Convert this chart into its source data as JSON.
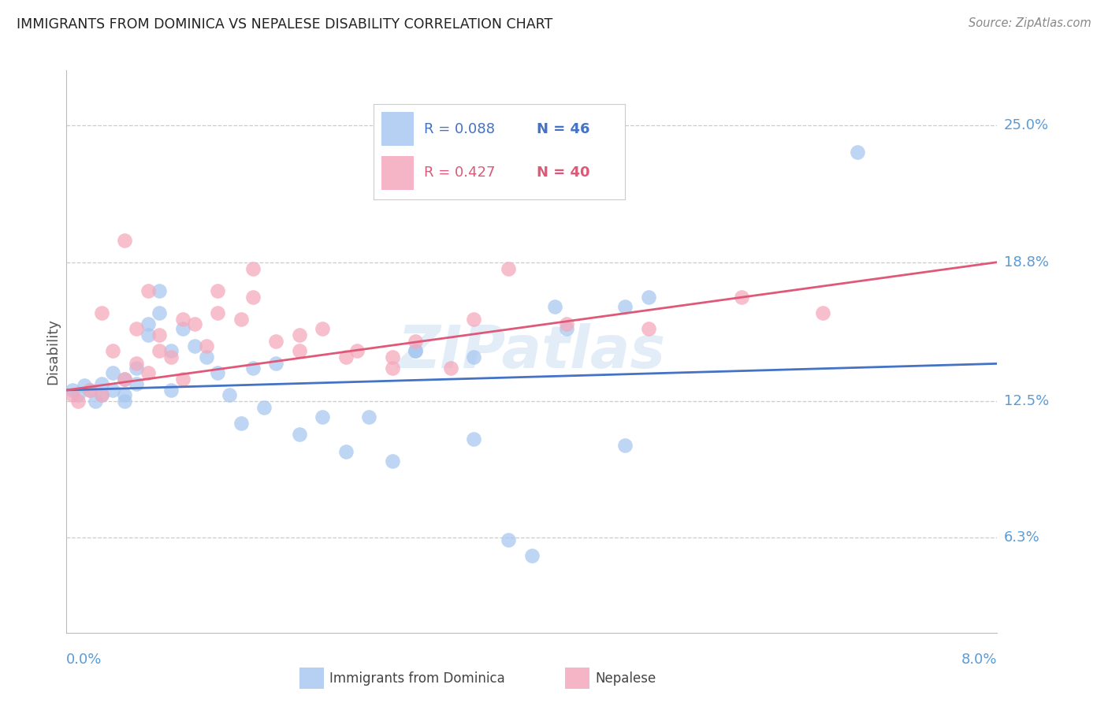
{
  "title": "IMMIGRANTS FROM DOMINICA VS NEPALESE DISABILITY CORRELATION CHART",
  "source": "Source: ZipAtlas.com",
  "ylabel": "Disability",
  "ytick_labels": [
    "6.3%",
    "12.5%",
    "18.8%",
    "25.0%"
  ],
  "ytick_values": [
    0.063,
    0.125,
    0.188,
    0.25
  ],
  "xmin": 0.0,
  "xmax": 0.08,
  "ymin": 0.02,
  "ymax": 0.275,
  "legend_r1": "R = 0.088",
  "legend_n1": "N = 46",
  "legend_r2": "R = 0.427",
  "legend_n2": "N = 40",
  "blue_color": "#A8C8F0",
  "pink_color": "#F5A8BC",
  "blue_line_color": "#4472C4",
  "pink_line_color": "#E05878",
  "axis_color": "#5B9BD5",
  "watermark": "ZIPatlas",
  "blue_line_y0": 0.13,
  "blue_line_y1": 0.142,
  "pink_line_y0": 0.13,
  "pink_line_y1": 0.188,
  "blue_scatter_x": [
    0.0005,
    0.001,
    0.0015,
    0.002,
    0.0025,
    0.003,
    0.003,
    0.004,
    0.004,
    0.005,
    0.005,
    0.005,
    0.006,
    0.006,
    0.007,
    0.007,
    0.008,
    0.008,
    0.009,
    0.009,
    0.01,
    0.011,
    0.012,
    0.013,
    0.014,
    0.015,
    0.016,
    0.017,
    0.018,
    0.02,
    0.022,
    0.024,
    0.026,
    0.028,
    0.03,
    0.035,
    0.038,
    0.04,
    0.043,
    0.048,
    0.03,
    0.035,
    0.042,
    0.05,
    0.068,
    0.048
  ],
  "blue_scatter_y": [
    0.13,
    0.128,
    0.132,
    0.13,
    0.125,
    0.128,
    0.133,
    0.138,
    0.13,
    0.135,
    0.128,
    0.125,
    0.14,
    0.133,
    0.16,
    0.155,
    0.175,
    0.165,
    0.148,
    0.13,
    0.158,
    0.15,
    0.145,
    0.138,
    0.128,
    0.115,
    0.14,
    0.122,
    0.142,
    0.11,
    0.118,
    0.102,
    0.118,
    0.098,
    0.148,
    0.108,
    0.062,
    0.055,
    0.158,
    0.168,
    0.148,
    0.145,
    0.168,
    0.172,
    0.238,
    0.105
  ],
  "pink_scatter_x": [
    0.0005,
    0.001,
    0.002,
    0.003,
    0.004,
    0.005,
    0.005,
    0.006,
    0.007,
    0.007,
    0.008,
    0.009,
    0.01,
    0.011,
    0.012,
    0.013,
    0.015,
    0.016,
    0.018,
    0.02,
    0.022,
    0.025,
    0.028,
    0.03,
    0.033,
    0.038,
    0.043,
    0.05,
    0.058,
    0.065,
    0.003,
    0.006,
    0.008,
    0.01,
    0.013,
    0.016,
    0.02,
    0.024,
    0.028,
    0.035
  ],
  "pink_scatter_y": [
    0.128,
    0.125,
    0.13,
    0.128,
    0.148,
    0.135,
    0.198,
    0.142,
    0.138,
    0.175,
    0.155,
    0.145,
    0.135,
    0.16,
    0.15,
    0.165,
    0.162,
    0.172,
    0.152,
    0.148,
    0.158,
    0.148,
    0.145,
    0.152,
    0.14,
    0.185,
    0.16,
    0.158,
    0.172,
    0.165,
    0.165,
    0.158,
    0.148,
    0.162,
    0.175,
    0.185,
    0.155,
    0.145,
    0.14,
    0.162
  ]
}
